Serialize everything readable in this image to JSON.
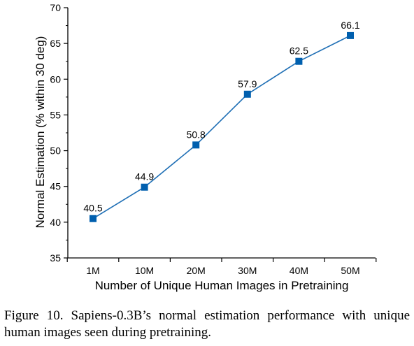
{
  "chart_data": {
    "type": "line",
    "categories": [
      "1M",
      "10M",
      "20M",
      "30M",
      "40M",
      "50M"
    ],
    "series": [
      {
        "values": [
          40.5,
          44.9,
          50.8,
          57.9,
          62.5,
          66.1
        ]
      }
    ],
    "data_labels": [
      "40.5",
      "44.9",
      "50.8",
      "57.9",
      "62.5",
      "66.1"
    ],
    "xlabel": "Number of Unique Human Images in Pretraining",
    "ylabel": "Normal Estimation (% within 30 deg)",
    "ylim": [
      35,
      70
    ],
    "yticks": [
      "35",
      "40",
      "45",
      "50",
      "55",
      "60",
      "65",
      "70"
    ],
    "grid": false,
    "marker": "square",
    "line_color": "#1f6fb5",
    "marker_color": "#005fae"
  },
  "caption": "Figure 10.  Sapiens-0.3B’s normal estimation performance with unique human images seen during pretraining."
}
